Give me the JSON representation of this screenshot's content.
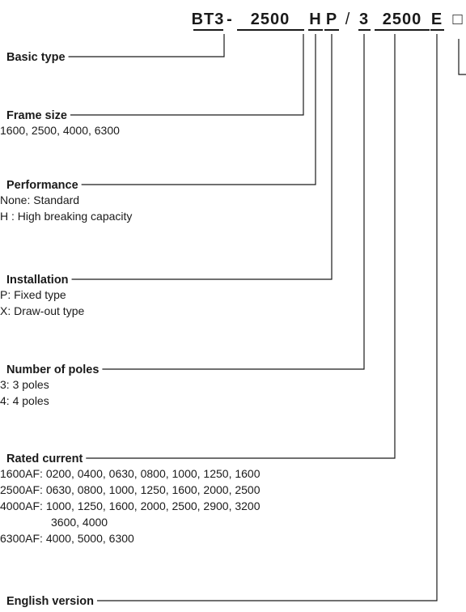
{
  "code": [
    "BT3",
    "-",
    "2500",
    "H",
    "P",
    "/",
    "3",
    "2500",
    "E",
    "□"
  ],
  "sections": [
    {
      "title": "Basic type",
      "lines": []
    },
    {
      "title": "Frame size",
      "lines": [
        "1600, 2500, 4000, 6300"
      ]
    },
    {
      "title": "Performance",
      "lines": [
        "None: Standard",
        "H : High breaking capacity"
      ]
    },
    {
      "title": "Installation",
      "lines": [
        "P: Fixed type",
        "X: Draw-out type"
      ]
    },
    {
      "title": "Number of poles",
      "lines": [
        "3: 3 poles",
        "4: 4 poles"
      ]
    },
    {
      "title": "Rated current",
      "lines": [
        "1600AF: 0200, 0400, 0630, 0800, 1000, 1250, 1600",
        "2500AF: 0630, 0800, 1000, 1250, 1600, 2000, 2500",
        "4000AF: 1000, 1250, 1600, 2000, 2500, 2900, 3200",
        "3600, 4000",
        "6300AF: 4000, 5000, 6300"
      ]
    },
    {
      "title": "English version",
      "lines": []
    }
  ]
}
